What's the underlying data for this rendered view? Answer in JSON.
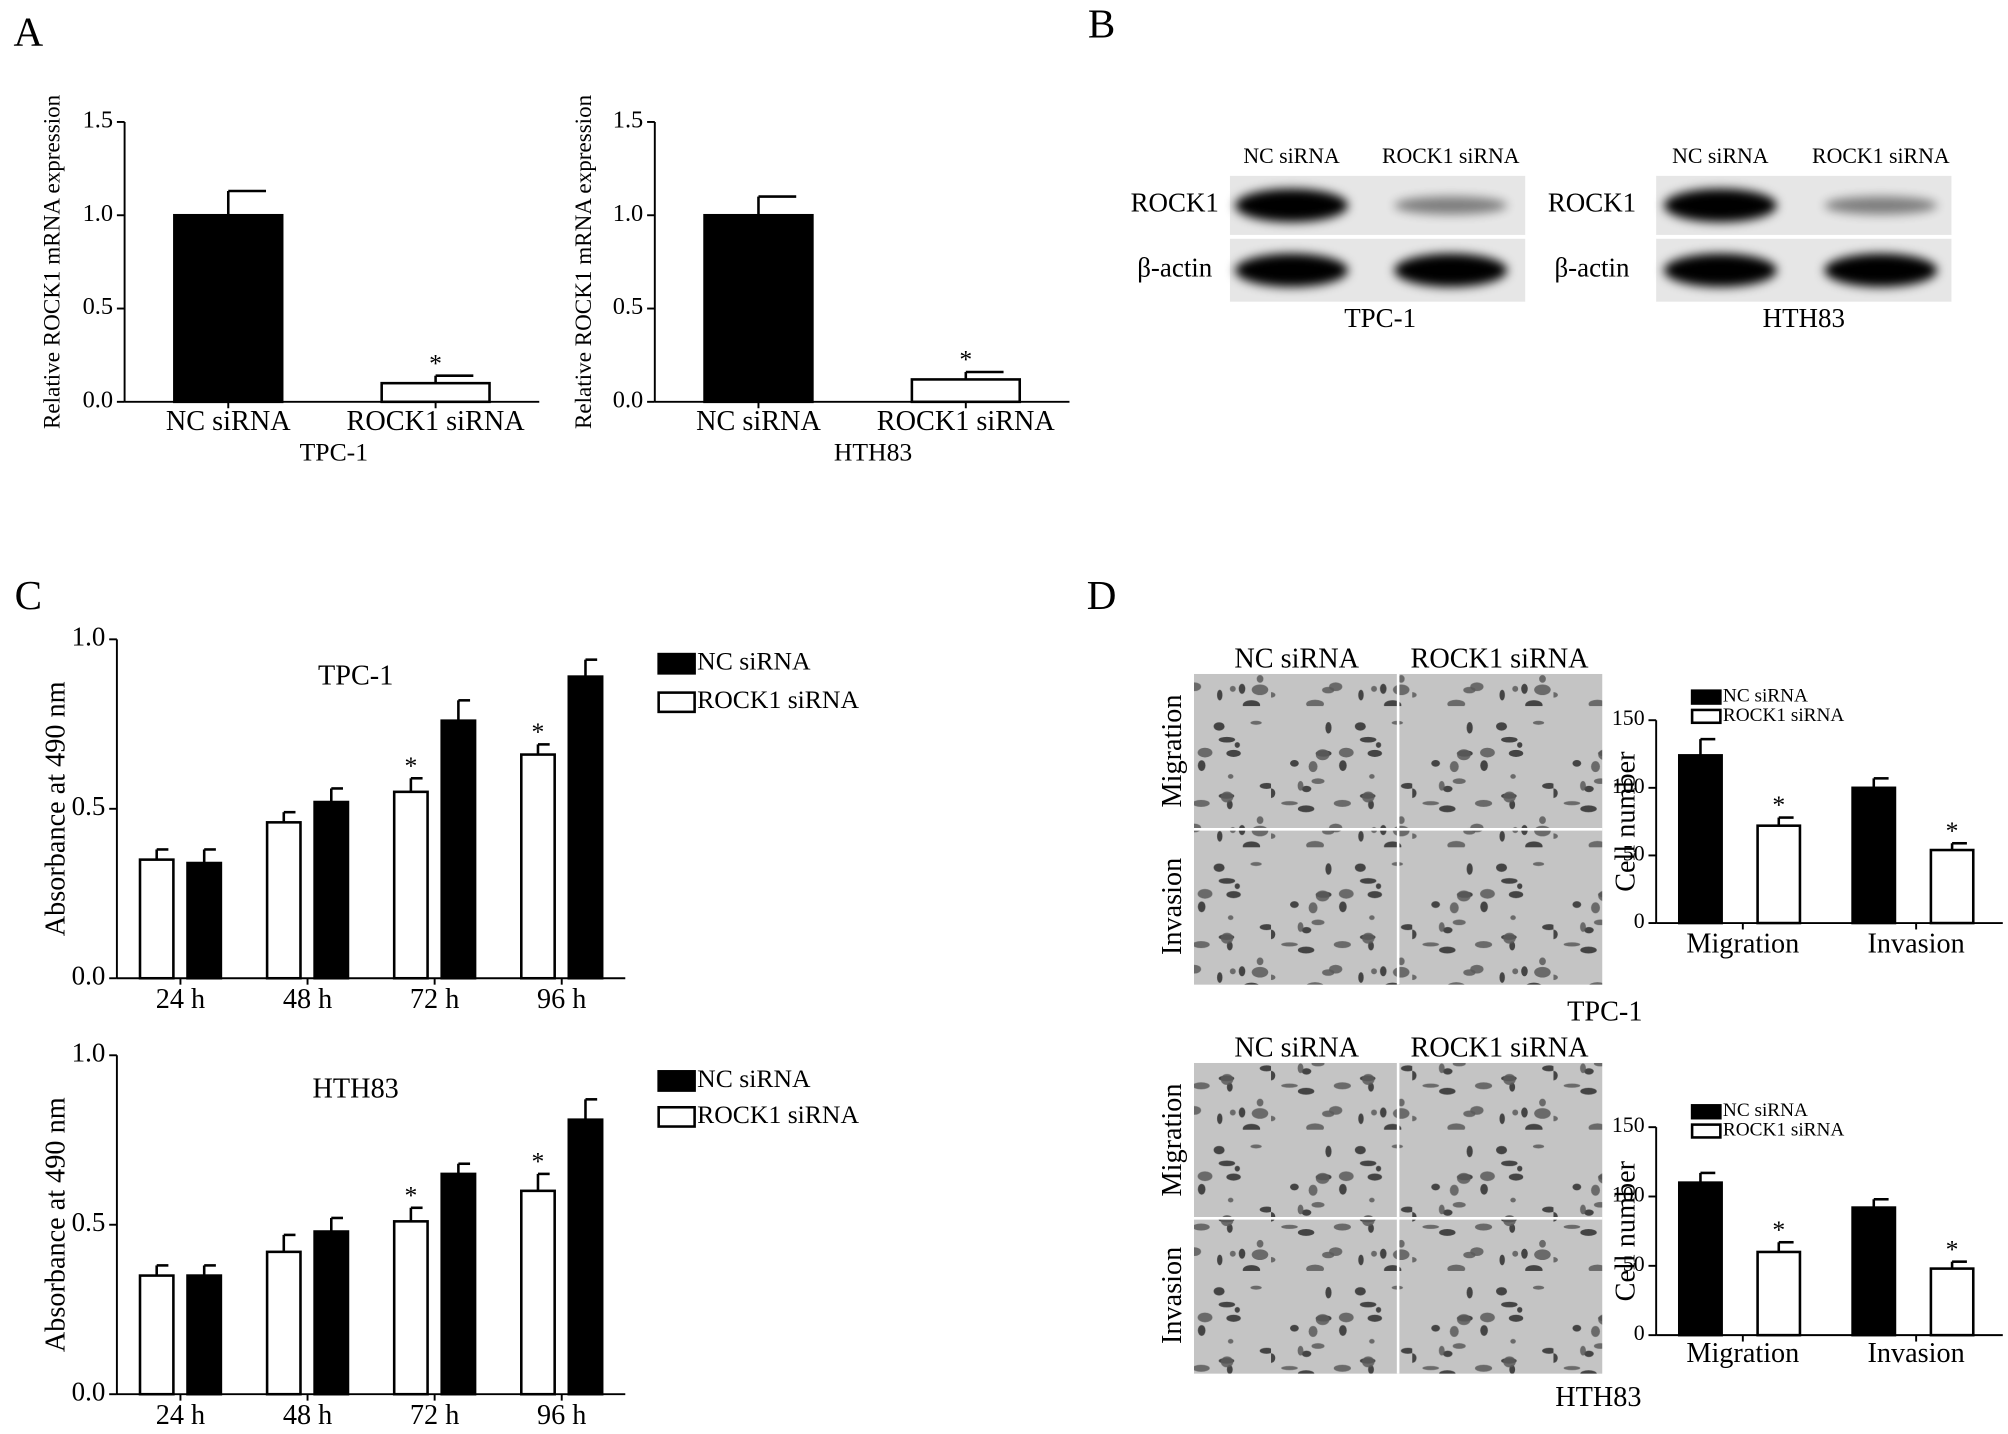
{
  "panel_labels": [
    "A",
    "B",
    "C",
    "D"
  ],
  "chart_data": [
    {
      "type": "bar",
      "ylabel": "Relative ROCK1 mRNA expression",
      "xlabel": "TPC-1",
      "categories": [
        "NC siRNA",
        "ROCK1 siRNA"
      ],
      "values": [
        1.0,
        0.1
      ],
      "errors": [
        0.13,
        0.04
      ],
      "colors": [
        "#000000",
        "#ffffff"
      ],
      "significance": [
        null,
        "*"
      ],
      "ylim": [
        0,
        1.5
      ],
      "yticks": [
        {
          "value": 0,
          "label": "0.0"
        },
        {
          "value": 0.5,
          "label": "0.5"
        },
        {
          "value": 1,
          "label": "1.0"
        },
        {
          "value": 1.5,
          "label": "1.5"
        }
      ]
    },
    {
      "type": "bar",
      "ylabel": "Relative ROCK1 mRNA expression",
      "xlabel": "HTH83",
      "categories": [
        "NC siRNA",
        "ROCK1 siRNA"
      ],
      "values": [
        1.0,
        0.12
      ],
      "errors": [
        0.1,
        0.04
      ],
      "colors": [
        "#000000",
        "#ffffff"
      ],
      "significance": [
        null,
        "*"
      ],
      "ylim": [
        0,
        1.5
      ],
      "yticks": [
        {
          "value": 0,
          "label": "0.0"
        },
        {
          "value": 0.5,
          "label": "0.5"
        },
        {
          "value": 1,
          "label": "1.0"
        },
        {
          "value": 1.5,
          "label": "1.5"
        }
      ]
    },
    {
      "type": "grouped_bar",
      "title": "TPC-1",
      "ylabel": "Absorbance at 490 nm",
      "categories": [
        "24 h",
        "48 h",
        "72 h",
        "96 h"
      ],
      "group_order": "reverse",
      "series": [
        {
          "name": "NC siRNA",
          "color": "#000000",
          "values": [
            0.34,
            0.52,
            0.76,
            0.89
          ],
          "errors": [
            0.04,
            0.04,
            0.06,
            0.05
          ],
          "significance": [
            null,
            null,
            null,
            null
          ]
        },
        {
          "name": "ROCK1 siRNA",
          "color": "#ffffff",
          "values": [
            0.35,
            0.46,
            0.55,
            0.66
          ],
          "errors": [
            0.03,
            0.03,
            0.04,
            0.03
          ],
          "significance": [
            null,
            null,
            "*",
            "*"
          ]
        }
      ],
      "ylim": [
        0,
        1
      ],
      "yticks": [
        {
          "value": 0,
          "label": "0.0"
        },
        {
          "value": 0.5,
          "label": "0.5"
        },
        {
          "value": 1,
          "label": "1.0"
        }
      ]
    },
    {
      "type": "grouped_bar",
      "title": "HTH83",
      "ylabel": "Absorbance at 490 nm",
      "categories": [
        "24 h",
        "48 h",
        "72 h",
        "96 h"
      ],
      "group_order": "reverse",
      "series": [
        {
          "name": "NC siRNA",
          "color": "#000000",
          "values": [
            0.35,
            0.48,
            0.65,
            0.81
          ],
          "errors": [
            0.03,
            0.04,
            0.03,
            0.06
          ],
          "significance": [
            null,
            null,
            null,
            null
          ]
        },
        {
          "name": "ROCK1 siRNA",
          "color": "#ffffff",
          "values": [
            0.35,
            0.42,
            0.51,
            0.6
          ],
          "errors": [
            0.03,
            0.05,
            0.04,
            0.05
          ],
          "significance": [
            null,
            null,
            "*",
            "*"
          ]
        }
      ],
      "ylim": [
        0,
        1
      ],
      "yticks": [
        {
          "value": 0,
          "label": "0.0"
        },
        {
          "value": 0.5,
          "label": "0.5"
        },
        {
          "value": 1,
          "label": "1.0"
        }
      ]
    },
    {
      "type": "grouped_bar",
      "ylabel": "Cell number",
      "categories": [
        "Migration",
        "Invasion"
      ],
      "group_order": "normal",
      "series": [
        {
          "name": "NC siRNA",
          "color": "#000000",
          "values": [
            124,
            100
          ],
          "errors": [
            12,
            7
          ],
          "significance": [
            null,
            null
          ]
        },
        {
          "name": "ROCK1 siRNA",
          "color": "#ffffff",
          "values": [
            72,
            54
          ],
          "errors": [
            6,
            5
          ],
          "significance": [
            "*",
            "*"
          ]
        }
      ],
      "ylim": [
        0,
        150
      ],
      "yticks": [
        0,
        50,
        100,
        150
      ]
    },
    {
      "type": "grouped_bar",
      "ylabel": "Cell number",
      "categories": [
        "Migration",
        "Invasion"
      ],
      "group_order": "normal",
      "series": [
        {
          "name": "NC siRNA",
          "color": "#000000",
          "values": [
            110,
            92
          ],
          "errors": [
            7,
            6
          ],
          "significance": [
            null,
            null
          ]
        },
        {
          "name": "ROCK1 siRNA",
          "color": "#ffffff",
          "values": [
            60,
            48
          ],
          "errors": [
            7,
            5
          ],
          "significance": [
            "*",
            "*"
          ]
        }
      ],
      "ylim": [
        0,
        150
      ],
      "yticks": [
        0,
        50,
        100,
        150
      ]
    }
  ],
  "western_blots": [
    {
      "columns": [
        "NC siRNA",
        "ROCK1 siRNA"
      ],
      "rows": [
        "ROCK1",
        "β-actin"
      ],
      "cell_line": "TPC-1"
    },
    {
      "columns": [
        "NC siRNA",
        "ROCK1 siRNA"
      ],
      "rows": [
        "ROCK1",
        "β-actin"
      ],
      "cell_line": "HTH83"
    }
  ],
  "micrographs": [
    {
      "columns": [
        "NC siRNA",
        "ROCK1 siRNA"
      ],
      "rows": [
        "Migration",
        "Invasion"
      ],
      "cell_line": "TPC-1"
    },
    {
      "columns": [
        "NC siRNA",
        "ROCK1 siRNA"
      ],
      "rows": [
        "Migration",
        "Invasion"
      ],
      "cell_line": "HTH83"
    }
  ]
}
